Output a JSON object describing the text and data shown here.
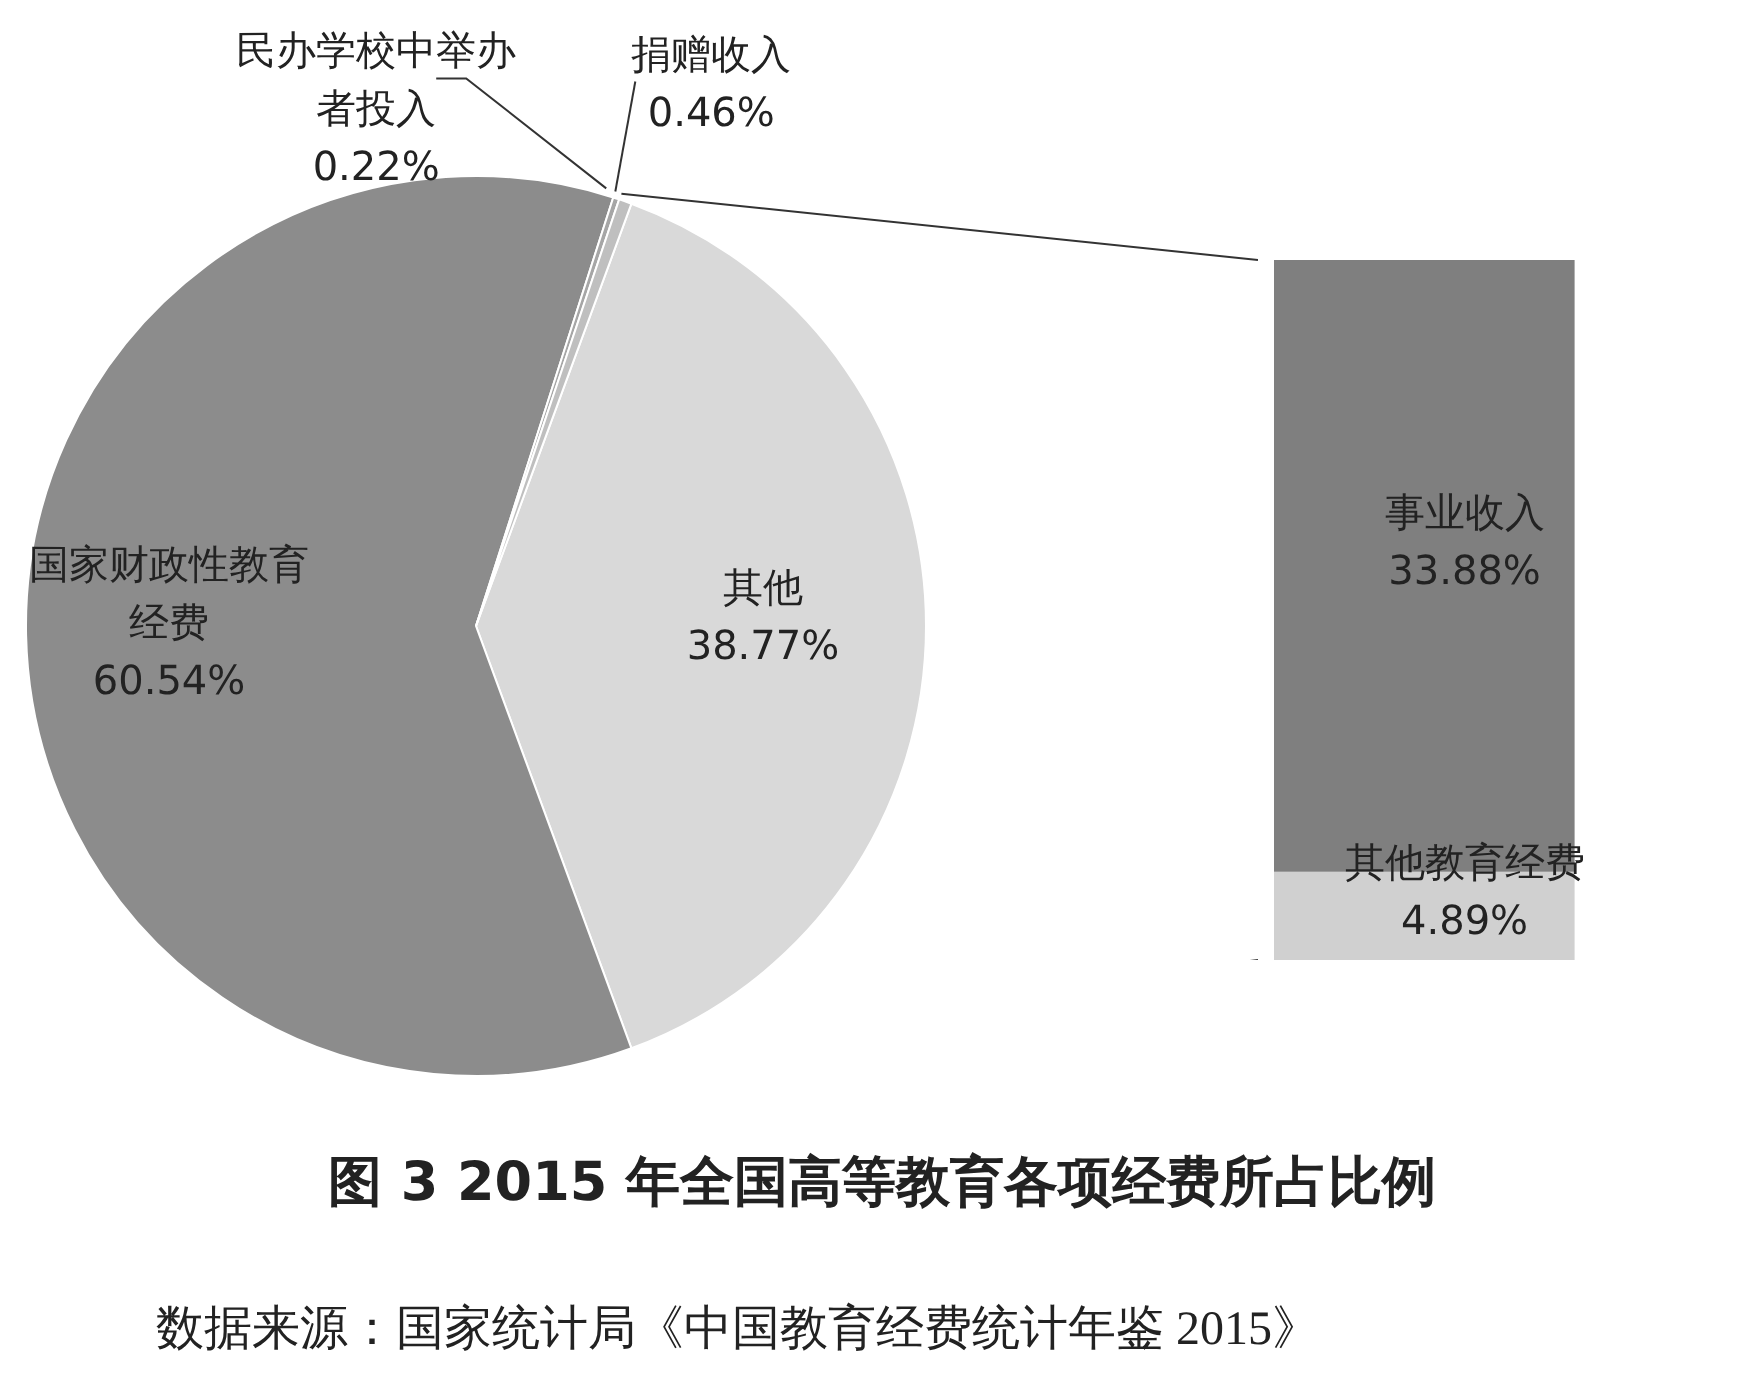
{
  "chart_data": [
    {
      "type": "pie",
      "title": "图 3  2015 年全国高等教育各项经费所占比例",
      "annotations": [
        "数据来源：国家统计局《中国教育经费统计年鉴 2015》"
      ],
      "categories": [
        "其他",
        "国家财政性教育经费",
        "民办学校中举办者投入",
        "捐赠收入"
      ],
      "values": [
        38.77,
        60.54,
        0.22,
        0.46
      ],
      "value_labels": [
        "38.77%",
        "60.54%",
        "0.22%",
        "0.46%"
      ],
      "colors": [
        "#d9d9d9",
        "#8c8c8c",
        "#a6a6a6",
        "#bfbfbf"
      ]
    },
    {
      "type": "bar",
      "stacked": true,
      "categories": [
        null
      ],
      "series": [
        {
          "name": "其他教育经费",
          "color": "#d0d0d0",
          "values": [
            4.89
          ],
          "value_labels": [
            "4.89%"
          ]
        },
        {
          "name": "事业收入",
          "color": "#7f7f7f",
          "values": [
            33.88
          ],
          "value_labels": [
            "33.88%"
          ]
        }
      ]
    }
  ]
}
